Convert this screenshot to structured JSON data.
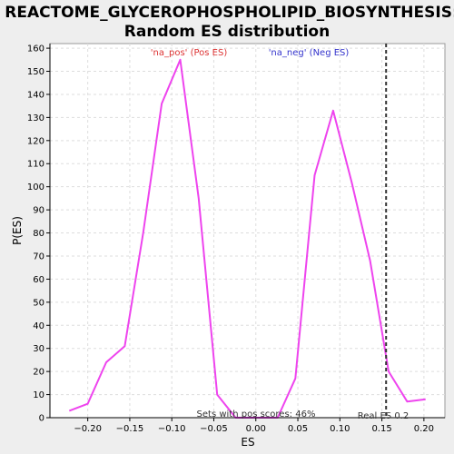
{
  "chart_data": {
    "type": "line",
    "title": "REACTOME_GLYCEROPHOSPHOLIPID_BIOSYNTHESIS:",
    "subtitle": "Random ES distribution",
    "xlabel": "ES",
    "ylabel": "P(ES)",
    "xlim": [
      -0.245,
      0.225
    ],
    "ylim": [
      0,
      162
    ],
    "xticks": [
      -0.2,
      -0.15,
      -0.1,
      -0.05,
      0.0,
      0.05,
      0.1,
      0.15,
      0.2
    ],
    "xtick_labels": [
      "−0.20",
      "−0.15",
      "−0.10",
      "−0.05",
      "0.00",
      "0.05",
      "0.10",
      "0.15",
      "0.20"
    ],
    "yticks": [
      0,
      10,
      20,
      30,
      40,
      50,
      60,
      70,
      80,
      90,
      100,
      110,
      120,
      130,
      140,
      150,
      160
    ],
    "grid": true,
    "series": [
      {
        "color": "#ee44ee",
        "x": [
          -0.222,
          -0.2,
          -0.178,
          -0.156,
          -0.134,
          -0.112,
          -0.09,
          -0.068,
          -0.046,
          -0.024,
          -0.002,
          0.02,
          0.026,
          0.047,
          0.07,
          0.092,
          0.114,
          0.136,
          0.158,
          0.18,
          0.202
        ],
        "y": [
          3,
          6,
          24,
          31,
          80,
          136,
          155,
          95,
          10,
          0,
          0,
          0,
          0,
          17,
          105,
          133,
          102,
          68,
          20,
          7,
          8
        ]
      }
    ],
    "legend": [
      {
        "label": "'na_pos' (Pos ES)",
        "color": "#dd3333"
      },
      {
        "label": "'na_neg' (Neg ES)",
        "color": "#3333cc"
      }
    ],
    "real_es": {
      "value": 0.155,
      "label": "Real ES 0.2"
    },
    "annotation": "Sets with pos scores: 46%"
  },
  "colors": {
    "page_bg": "#eeeeee",
    "plot_bg": "#ffffff",
    "grid": "#dddddd",
    "axis": "#000000",
    "real_es_line": "#333333"
  }
}
